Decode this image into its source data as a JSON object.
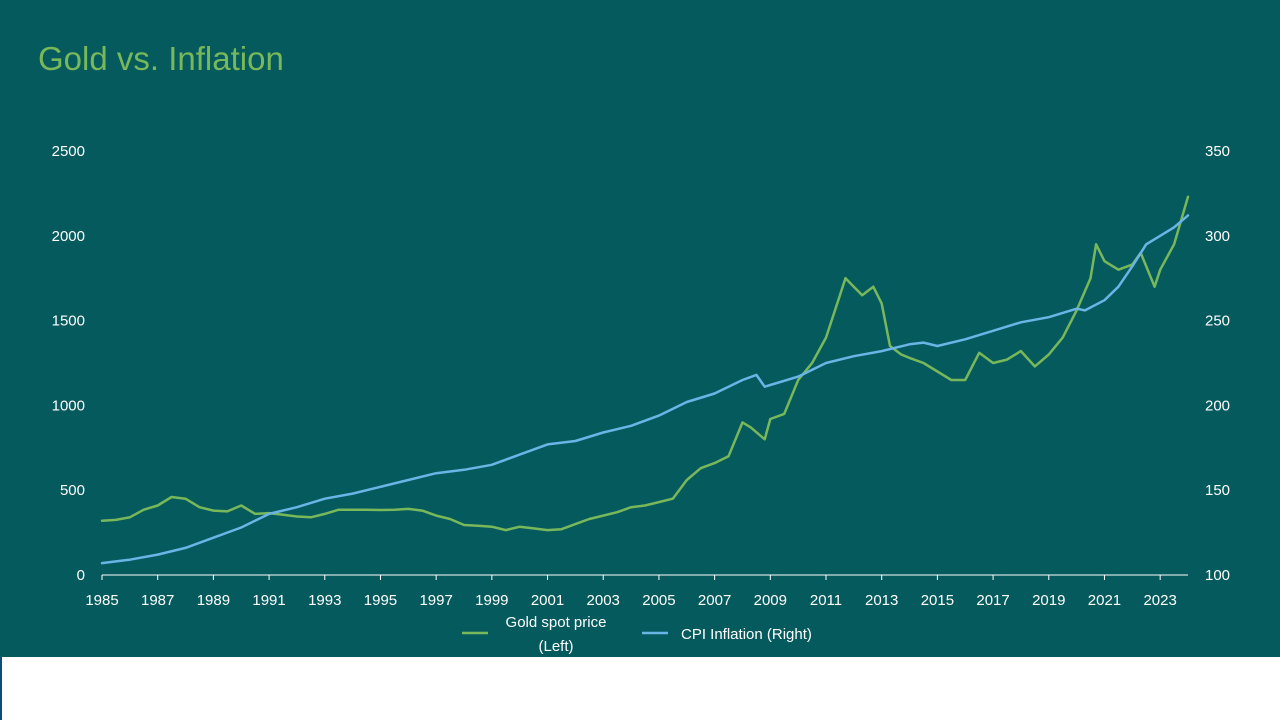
{
  "slide": {
    "title": "Gold vs. Inflation",
    "background": "#055a5e",
    "title_color": "#78b85a"
  },
  "chart_data": {
    "type": "line",
    "title": "",
    "xlim": [
      1985,
      2024
    ],
    "x_ticks": [
      "1985",
      "1987",
      "1989",
      "1991",
      "1993",
      "1995",
      "1997",
      "1999",
      "2001",
      "2003",
      "2005",
      "2007",
      "2009",
      "2011",
      "2013",
      "2015",
      "2017",
      "2019",
      "2021",
      "2023"
    ],
    "y_left": {
      "range": [
        0,
        2500
      ],
      "ticks": [
        "0",
        "500",
        "1000",
        "1500",
        "2000",
        "2500"
      ]
    },
    "y_right": {
      "range": [
        100,
        350
      ],
      "ticks": [
        "100",
        "150",
        "200",
        "250",
        "300",
        "350"
      ]
    },
    "grid": false,
    "legend_placement": "bottom-center",
    "series": [
      {
        "name": "Gold spot price\n(Left)",
        "axis": "left",
        "color": "#78b85a",
        "x": [
          1985,
          1985.5,
          1986,
          1986.5,
          1987,
          1987.5,
          1988,
          1988.5,
          1989,
          1989.5,
          1990,
          1990.5,
          1991,
          1991.5,
          1992,
          1992.5,
          1993,
          1993.5,
          1994,
          1994.5,
          1995,
          1995.5,
          1996,
          1996.5,
          1997,
          1997.5,
          1998,
          1998.5,
          1999,
          1999.5,
          2000,
          2000.5,
          2001,
          2001.5,
          2002,
          2002.5,
          2003,
          2003.5,
          2004,
          2004.5,
          2005,
          2005.5,
          2006,
          2006.5,
          2007,
          2007.5,
          2008,
          2008.3,
          2008.8,
          2009,
          2009.5,
          2010,
          2010.5,
          2011,
          2011.3,
          2011.7,
          2012,
          2012.3,
          2012.7,
          2013,
          2013.3,
          2013.7,
          2014,
          2014.5,
          2015,
          2015.5,
          2016,
          2016.5,
          2017,
          2017.5,
          2018,
          2018.5,
          2019,
          2019.5,
          2020,
          2020.5,
          2020.7,
          2021,
          2021.5,
          2022,
          2022.3,
          2022.8,
          2023,
          2023.5,
          2024
        ],
        "values": [
          320,
          325,
          340,
          385,
          410,
          460,
          450,
          400,
          380,
          375,
          410,
          360,
          365,
          355,
          345,
          340,
          360,
          385,
          385,
          385,
          383,
          385,
          390,
          380,
          350,
          330,
          295,
          290,
          285,
          265,
          285,
          275,
          265,
          270,
          300,
          330,
          350,
          370,
          400,
          410,
          430,
          450,
          560,
          630,
          660,
          700,
          900,
          870,
          800,
          920,
          950,
          1150,
          1250,
          1400,
          1550,
          1750,
          1700,
          1650,
          1700,
          1600,
          1350,
          1300,
          1280,
          1250,
          1200,
          1150,
          1150,
          1310,
          1250,
          1270,
          1320,
          1230,
          1300,
          1400,
          1560,
          1750,
          1950,
          1850,
          1800,
          1830,
          1900,
          1700,
          1800,
          1950,
          2230
        ]
      },
      {
        "name": "CPI Inflation (Right)",
        "axis": "right",
        "color": "#6ab4e6",
        "x": [
          1985,
          1986,
          1987,
          1988,
          1989,
          1990,
          1991,
          1992,
          1993,
          1994,
          1995,
          1996,
          1997,
          1998,
          1999,
          2000,
          2001,
          2002,
          2003,
          2004,
          2005,
          2006,
          2007,
          2008,
          2008.5,
          2008.8,
          2009,
          2010,
          2011,
          2012,
          2013,
          2014,
          2014.5,
          2015,
          2016,
          2017,
          2018,
          2019,
          2020,
          2020.3,
          2021,
          2021.5,
          2022,
          2022.5,
          2023,
          2023.5,
          2024
        ],
        "values": [
          107,
          109,
          112,
          116,
          122,
          128,
          136,
          140,
          145,
          148,
          152,
          156,
          160,
          162,
          165,
          171,
          177,
          179,
          184,
          188,
          194,
          202,
          207,
          215,
          218,
          211,
          212,
          217,
          225,
          229,
          232,
          236,
          237,
          235,
          239,
          244,
          249,
          252,
          257,
          256,
          262,
          270,
          282,
          295,
          300,
          305,
          312
        ]
      }
    ]
  }
}
